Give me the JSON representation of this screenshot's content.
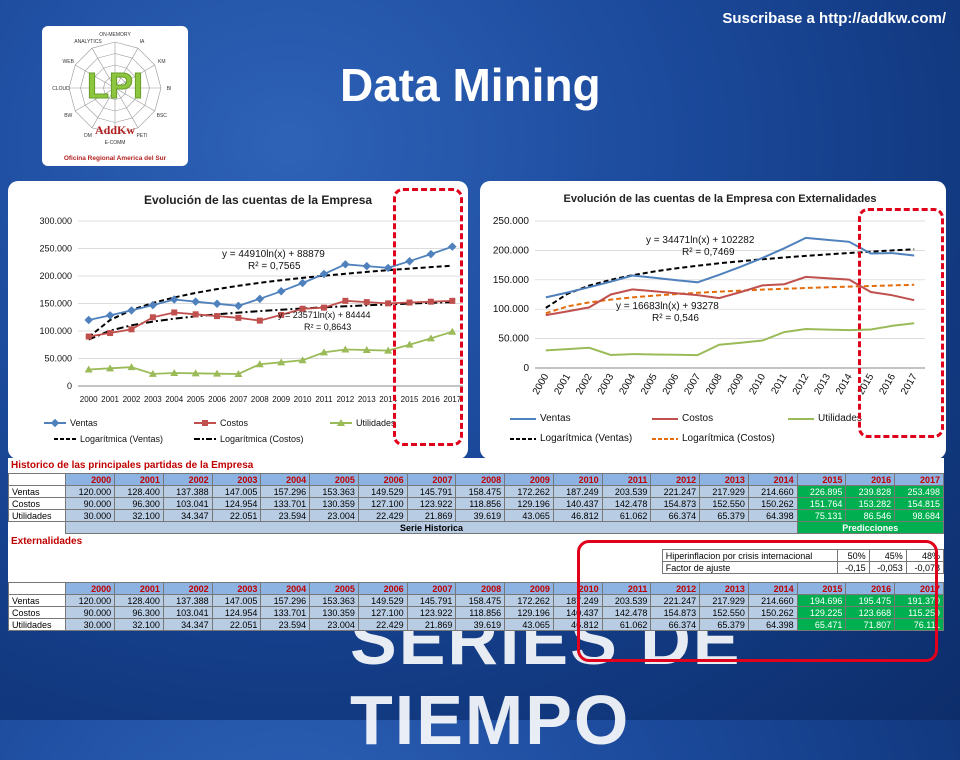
{
  "header": {
    "subscribe": "Suscribase a http://addkw.com/",
    "title": "Data Mining"
  },
  "logo": {
    "center": "LPI",
    "brand": "AddKw",
    "subtitle": "Oficina Regional America del Sur",
    "spokes": [
      "ON-MEMORY",
      "IA",
      "KM",
      "BI",
      "BSC",
      "PETI",
      "E-COMM",
      "DM",
      "BW",
      "CLOUD",
      "WEB",
      "ANALYTICS"
    ]
  },
  "background_text": "SERIES DE TIEMPO",
  "colors": {
    "ventas": "#4f81bd",
    "costos": "#c0504d",
    "utilidades": "#9bbb59",
    "highlight": "#e0001b",
    "prediction": "#00b050"
  },
  "chart1": {
    "title": "Evolución de las cuentas de la Empresa",
    "eq_ventas": [
      "y = 44910ln(x) + 88879",
      "R² = 0,7565"
    ],
    "eq_costos": [
      "y = 23571ln(x) + 84444",
      "R² = 0,8643"
    ],
    "legend": [
      "Ventas",
      "Costos",
      "Utilidades",
      "Logarítmica (Ventas)",
      "Logarítmica (Costos)"
    ]
  },
  "chart2": {
    "title": "Evolución de las cuentas de la Empresa con Externalidades",
    "eq_ventas": [
      "y = 34471ln(x) + 102282",
      "R² = 0,7469"
    ],
    "eq_costos": [
      "y = 16683ln(x) + 93278",
      "R² = 0,546"
    ],
    "legend": [
      "Ventas",
      "Costos",
      "Utilidades",
      "Logarítmica (Ventas)",
      "Logarítmica (Costos)"
    ]
  },
  "chart_data": [
    {
      "type": "line",
      "title": "Evolución de las cuentas de la Empresa",
      "x": [
        "2000",
        "2001",
        "2002",
        "2003",
        "2004",
        "2005",
        "2006",
        "2007",
        "2008",
        "2009",
        "2010",
        "2011",
        "2012",
        "2013",
        "2014",
        "2015",
        "2016",
        "2017"
      ],
      "y_ticks": [
        "0",
        "50.000",
        "100.000",
        "150.000",
        "200.000",
        "250.000",
        "300.000"
      ],
      "ylim": [
        0,
        300000
      ],
      "series": [
        {
          "name": "Ventas",
          "values": [
            120000,
            128400,
            137388,
            147005,
            157296,
            153363,
            149529,
            145791,
            158475,
            172262,
            187249,
            203539,
            221247,
            217929,
            214660,
            226895,
            239828,
            253498
          ]
        },
        {
          "name": "Costos",
          "values": [
            90000,
            96300,
            103041,
            124954,
            133701,
            130359,
            127100,
            123922,
            118856,
            129196,
            140437,
            142478,
            154873,
            152550,
            150262,
            151764,
            153282,
            154815
          ]
        },
        {
          "name": "Utilidades",
          "values": [
            30000,
            32100,
            34347,
            22051,
            23594,
            23004,
            22429,
            21869,
            39619,
            43065,
            46812,
            61062,
            66374,
            65379,
            64398,
            75131,
            86546,
            98684
          ]
        }
      ],
      "legend": "bottom"
    },
    {
      "type": "line",
      "title": "Evolución de las cuentas de la Empresa con Externalidades",
      "x": [
        "2000",
        "2001",
        "2002",
        "2003",
        "2004",
        "2005",
        "2006",
        "2007",
        "2008",
        "2009",
        "2010",
        "2011",
        "2012",
        "2013",
        "2014",
        "2015",
        "2016",
        "2017"
      ],
      "y_ticks": [
        "0",
        "50.000",
        "100.000",
        "150.000",
        "200.000",
        "250.000"
      ],
      "ylim": [
        0,
        250000
      ],
      "series": [
        {
          "name": "Ventas",
          "values": [
            120000,
            128400,
            137388,
            147005,
            157296,
            153363,
            149529,
            145791,
            158475,
            172262,
            187249,
            203539,
            221247,
            217929,
            214660,
            194696,
            195475,
            191370
          ]
        },
        {
          "name": "Costos",
          "values": [
            90000,
            96300,
            103041,
            124954,
            133701,
            130359,
            127100,
            123922,
            118856,
            129196,
            140437,
            142478,
            154873,
            152550,
            150262,
            129225,
            123668,
            115259
          ]
        },
        {
          "name": "Utilidades",
          "values": [
            30000,
            32100,
            34347,
            22051,
            23594,
            23004,
            22429,
            21869,
            39619,
            43065,
            46812,
            61062,
            66374,
            65379,
            64398,
            65471,
            71807,
            76111
          ]
        }
      ],
      "legend": "bottom"
    }
  ],
  "table": {
    "historic_title": "Historico de las principales partidas de la Empresa",
    "years": [
      "2000",
      "2001",
      "2002",
      "2003",
      "2004",
      "2005",
      "2006",
      "2007",
      "2008",
      "2009",
      "2010",
      "2011",
      "2012",
      "2013",
      "2014",
      "2015",
      "2016",
      "2017"
    ],
    "rows": [
      {
        "label": "Ventas",
        "values": [
          "120.000",
          "128.400",
          "137.388",
          "147.005",
          "157.296",
          "153.363",
          "149.529",
          "145.791",
          "158.475",
          "172.262",
          "187.249",
          "203.539",
          "221.247",
          "217.929",
          "214.660",
          "226.895",
          "239.828",
          "253.498"
        ]
      },
      {
        "label": "Costos",
        "values": [
          "90.000",
          "96.300",
          "103.041",
          "124.954",
          "133.701",
          "130.359",
          "127.100",
          "123.922",
          "118.856",
          "129.196",
          "140.437",
          "142.478",
          "154.873",
          "152.550",
          "150.262",
          "151.764",
          "153.282",
          "154.815"
        ]
      },
      {
        "label": "Utilidades",
        "values": [
          "30.000",
          "32.100",
          "34.347",
          "22.051",
          "23.594",
          "23.004",
          "22.429",
          "21.869",
          "39.619",
          "43.065",
          "46.812",
          "61.062",
          "66.374",
          "65.379",
          "64.398",
          "75.131",
          "86.546",
          "98.684"
        ]
      }
    ],
    "serie_historica": "Serie Historica",
    "predicciones": "Predicciones",
    "externalidades_title": "Externalidades",
    "ext_label1": "Hiperinflacion por crisis internacional",
    "ext_vals1": [
      "50%",
      "45%",
      "48%"
    ],
    "ext_label2": "Factor de ajuste",
    "ext_vals2": [
      "-0,15",
      "-0,053",
      "-0,078"
    ],
    "rows2": [
      {
        "label": "Ventas",
        "values": [
          "120.000",
          "128.400",
          "137.388",
          "147.005",
          "157.296",
          "153.363",
          "149.529",
          "145.791",
          "158.475",
          "172.262",
          "187.249",
          "203.539",
          "221.247",
          "217.929",
          "214.660",
          "194.696",
          "195.475",
          "191.370"
        ]
      },
      {
        "label": "Costos",
        "values": [
          "90.000",
          "96.300",
          "103.041",
          "124.954",
          "133.701",
          "130.359",
          "127.100",
          "123.922",
          "118.856",
          "129.196",
          "140.437",
          "142.478",
          "154.873",
          "152.550",
          "150.262",
          "129.225",
          "123.668",
          "115.259"
        ]
      },
      {
        "label": "Utilidades",
        "values": [
          "30.000",
          "32.100",
          "34.347",
          "22.051",
          "23.594",
          "23.004",
          "22.429",
          "21.869",
          "39.619",
          "43.065",
          "46.812",
          "61.062",
          "66.374",
          "65.379",
          "64.398",
          "65.471",
          "71.807",
          "76.111"
        ]
      }
    ]
  }
}
